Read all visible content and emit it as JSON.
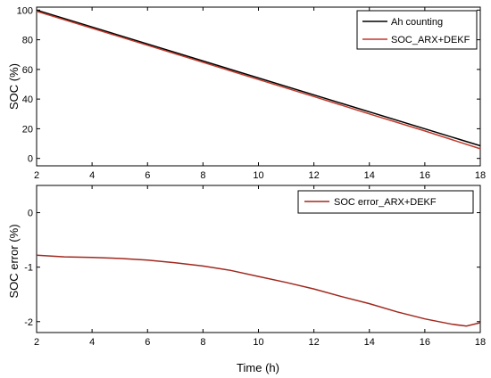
{
  "colors": {
    "ah_counting": "#000000",
    "soc_arx_dekf": "#c0392b",
    "soc_error": "#a0281e",
    "axis": "#000000"
  },
  "chart_data": [
    {
      "type": "line",
      "xlabel": "",
      "ylabel": "SOC (%)",
      "xlim": [
        2,
        18
      ],
      "ylim": [
        -5,
        102
      ],
      "x_ticks": [
        "2",
        "4",
        "6",
        "8",
        "10",
        "12",
        "14",
        "16",
        "18"
      ],
      "y_ticks": [
        "0",
        "20",
        "40",
        "60",
        "80",
        "100"
      ],
      "legend_position": "top-right",
      "grid": false,
      "series": [
        {
          "name": "Ah counting",
          "color": "#000000",
          "x": [
            2,
            18
          ],
          "y": [
            100,
            8.5
          ]
        },
        {
          "name": "SOC_ARX+DEKF",
          "color": "#c0392b",
          "x": [
            2,
            4,
            6,
            8,
            10,
            12,
            14,
            16,
            18
          ],
          "y": [
            99.2,
            87.8,
            76.3,
            64.8,
            53.2,
            41.7,
            30.0,
            18.5,
            6.5
          ]
        }
      ]
    },
    {
      "type": "line",
      "xlabel": "Time (h)",
      "ylabel": "SOC error (%)",
      "xlim": [
        2,
        18
      ],
      "ylim": [
        -2.2,
        0.5
      ],
      "x_ticks": [
        "2",
        "4",
        "6",
        "8",
        "10",
        "12",
        "14",
        "16",
        "18"
      ],
      "y_ticks": [
        "0",
        "-1",
        "-2"
      ],
      "legend_position": "top-right",
      "grid": false,
      "series": [
        {
          "name": "SOC error_ARX+DEKF",
          "color": "#a0281e",
          "x": [
            2,
            3,
            4,
            5,
            6,
            7,
            8,
            9,
            10,
            11,
            12,
            13,
            14,
            15,
            16,
            17,
            17.5,
            18
          ],
          "y": [
            -0.78,
            -0.81,
            -0.82,
            -0.84,
            -0.87,
            -0.92,
            -0.98,
            -1.06,
            -1.17,
            -1.28,
            -1.4,
            -1.54,
            -1.67,
            -1.82,
            -1.95,
            -2.05,
            -2.08,
            -2.02
          ]
        }
      ]
    }
  ]
}
